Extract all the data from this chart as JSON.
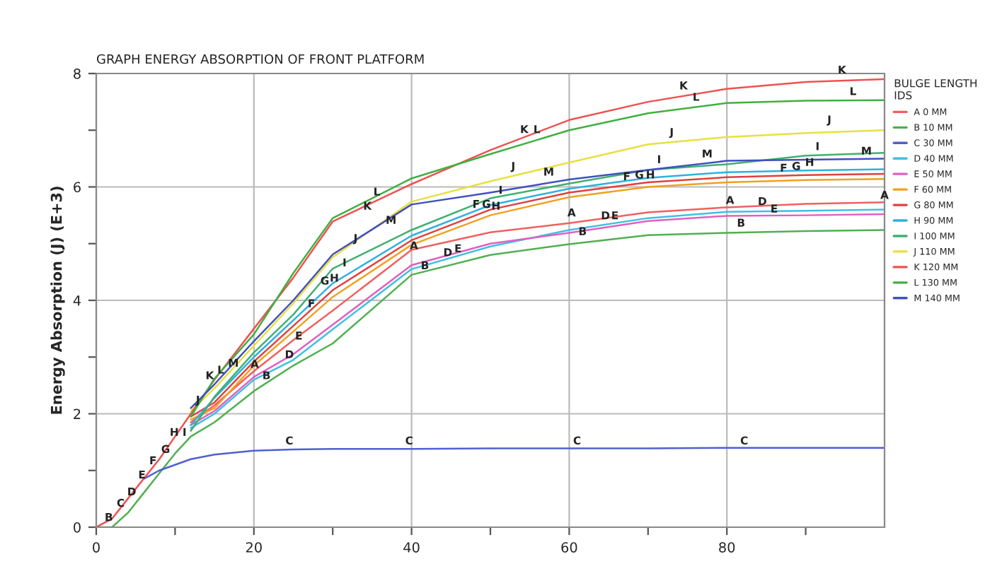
{
  "chart_data": {
    "type": "line",
    "title": "GRAPH ENERGY ABSORPTION OF FRONT PLATFORM",
    "ylabel": "Energy Absorption (J) (E+3)",
    "legend_title": "BULGE LENGTH\nIDS",
    "legend": "right",
    "grid": true,
    "marker": "none",
    "line_style": "solid",
    "x": [
      0,
      2,
      4,
      6,
      8,
      10,
      12,
      15,
      20,
      25,
      30,
      40,
      50,
      60,
      70,
      80,
      90,
      100
    ],
    "xlim": [
      0,
      100
    ],
    "ylim": [
      0,
      8
    ],
    "xticks": [
      0,
      {
        "value": 10,
        "label": null
      },
      20,
      {
        "value": 30,
        "label": null
      },
      40,
      {
        "value": 50,
        "label": null
      },
      60,
      {
        "value": 70,
        "label": null
      },
      80,
      {
        "value": 90,
        "label": null
      }
    ],
    "yticks": [
      0,
      {
        "value": 1,
        "label": null
      },
      2,
      {
        "value": 3,
        "label": null
      },
      4,
      {
        "value": 5,
        "label": null
      },
      6,
      {
        "value": 7,
        "label": null
      },
      8
    ],
    "series": [
      {
        "name": "A 0 MM",
        "color": "#f06060",
        "values": [
          null,
          null,
          null,
          null,
          null,
          null,
          1.85,
          2.15,
          2.75,
          3.3,
          3.82,
          4.89,
          5.2,
          5.36,
          5.55,
          5.64,
          5.7,
          5.73
        ]
      },
      {
        "name": "B 10 MM",
        "color": "#50b050",
        "values": [
          0,
          0,
          0.25,
          0.6,
          0.95,
          1.3,
          1.6,
          1.85,
          2.4,
          2.85,
          3.24,
          4.45,
          4.8,
          4.99,
          5.15,
          5.19,
          5.22,
          5.24
        ]
      },
      {
        "name": "C 30 MM",
        "color": "#5060d0",
        "values": [
          null,
          null,
          null,
          0.85,
          1.0,
          1.1,
          1.2,
          1.28,
          1.35,
          1.37,
          1.38,
          1.38,
          1.39,
          1.39,
          1.39,
          1.4,
          1.4,
          1.4
        ]
      },
      {
        "name": "D 40 MM",
        "color": "#40c0e0",
        "values": [
          null,
          null,
          null,
          null,
          null,
          null,
          1.75,
          2.0,
          2.6,
          2.95,
          3.49,
          4.55,
          4.95,
          5.24,
          5.45,
          5.56,
          5.58,
          5.6
        ]
      },
      {
        "name": "E 50 MM",
        "color": "#e060c0",
        "values": [
          null,
          null,
          null,
          null,
          null,
          null,
          1.8,
          2.05,
          2.65,
          3.05,
          3.57,
          4.62,
          5.0,
          5.19,
          5.4,
          5.49,
          5.5,
          5.52
        ]
      },
      {
        "name": "F 60 MM",
        "color": "#f0a020",
        "values": [
          null,
          null,
          null,
          null,
          null,
          null,
          1.9,
          2.1,
          2.85,
          3.45,
          4.06,
          4.98,
          5.5,
          5.82,
          6.0,
          6.08,
          6.12,
          6.14
        ]
      },
      {
        "name": "G 80 MM",
        "color": "#e04040",
        "values": [
          null,
          null,
          null,
          null,
          null,
          null,
          1.95,
          2.2,
          2.92,
          3.55,
          4.18,
          5.06,
          5.6,
          5.9,
          6.08,
          6.17,
          6.21,
          6.23
        ]
      },
      {
        "name": "H 90 MM",
        "color": "#30b0e0",
        "values": [
          null,
          null,
          null,
          null,
          null,
          null,
          1.8,
          2.28,
          3.0,
          3.65,
          4.3,
          5.14,
          5.68,
          5.97,
          6.16,
          6.26,
          6.29,
          6.31
        ]
      },
      {
        "name": "I 100 MM",
        "color": "#40b070",
        "values": [
          null,
          null,
          null,
          null,
          null,
          null,
          1.7,
          2.3,
          3.08,
          3.75,
          4.56,
          5.24,
          5.8,
          6.06,
          6.3,
          6.4,
          6.55,
          6.6
        ]
      },
      {
        "name": "J 110 MM",
        "color": "#e8e040",
        "values": [
          null,
          null,
          null,
          null,
          null,
          null,
          2.05,
          2.45,
          3.2,
          3.95,
          4.76,
          5.74,
          6.1,
          6.43,
          6.75,
          6.88,
          6.95,
          7.0
        ]
      },
      {
        "name": "K 120 MM",
        "color": "#f05050",
        "values": [
          0,
          0.15,
          0.5,
          0.85,
          1.2,
          1.6,
          2.0,
          2.6,
          3.5,
          4.4,
          5.39,
          6.05,
          6.65,
          7.18,
          7.5,
          7.73,
          7.85,
          7.9
        ]
      },
      {
        "name": "L 130 MM",
        "color": "#40b040",
        "values": [
          null,
          null,
          null,
          null,
          null,
          null,
          1.95,
          2.62,
          3.4,
          4.48,
          5.45,
          6.15,
          6.58,
          7.0,
          7.3,
          7.48,
          7.52,
          7.53
        ]
      },
      {
        "name": "M 140 MM",
        "color": "#4050c0",
        "values": [
          null,
          null,
          null,
          null,
          null,
          null,
          2.1,
          2.52,
          3.28,
          4.0,
          4.81,
          5.69,
          5.9,
          6.13,
          6.3,
          6.46,
          6.48,
          6.5
        ]
      }
    ],
    "annotations": [
      {
        "text": "B",
        "x": 1.6,
        "y": 0.07
      },
      {
        "text": "C",
        "x": 3.1,
        "y": 0.32
      },
      {
        "text": "D",
        "x": 4.5,
        "y": 0.52
      },
      {
        "text": "E",
        "x": 5.8,
        "y": 0.82
      },
      {
        "text": "F",
        "x": 7.2,
        "y": 1.07
      },
      {
        "text": "G",
        "x": 8.8,
        "y": 1.27
      },
      {
        "text": "H",
        "x": 9.9,
        "y": 1.57
      },
      {
        "text": "I",
        "x": 11.2,
        "y": 1.57
      },
      {
        "text": "J",
        "x": 12.9,
        "y": 2.14
      },
      {
        "text": "K",
        "x": 14.4,
        "y": 2.57
      },
      {
        "text": "L",
        "x": 15.8,
        "y": 2.67
      },
      {
        "text": "M",
        "x": 17.4,
        "y": 2.79
      },
      {
        "text": "A",
        "x": 20.1,
        "y": 2.77
      },
      {
        "text": "B",
        "x": 21.6,
        "y": 2.57
      },
      {
        "text": "D",
        "x": 24.5,
        "y": 2.94
      },
      {
        "text": "E",
        "x": 25.7,
        "y": 3.27
      },
      {
        "text": "F",
        "x": 27.3,
        "y": 3.84
      },
      {
        "text": "G",
        "x": 29.0,
        "y": 4.24
      },
      {
        "text": "H",
        "x": 30.2,
        "y": 4.29
      },
      {
        "text": "I",
        "x": 31.5,
        "y": 4.56
      },
      {
        "text": "J",
        "x": 32.9,
        "y": 4.99
      },
      {
        "text": "K",
        "x": 34.4,
        "y": 5.56
      },
      {
        "text": "L",
        "x": 35.6,
        "y": 5.81
      },
      {
        "text": "M",
        "x": 37.4,
        "y": 5.31
      },
      {
        "text": "A",
        "x": 40.3,
        "y": 4.86
      },
      {
        "text": "B",
        "x": 41.7,
        "y": 4.51
      },
      {
        "text": "D",
        "x": 44.6,
        "y": 4.74
      },
      {
        "text": "E",
        "x": 45.9,
        "y": 4.81
      },
      {
        "text": "C",
        "x": 24.5,
        "y": 1.42
      },
      {
        "text": "C",
        "x": 39.7,
        "y": 1.42
      },
      {
        "text": "C",
        "x": 61.0,
        "y": 1.42
      },
      {
        "text": "C",
        "x": 82.2,
        "y": 1.42
      },
      {
        "text": "K",
        "x": 54.3,
        "y": 6.91
      },
      {
        "text": "L",
        "x": 55.9,
        "y": 6.91
      },
      {
        "text": "J",
        "x": 52.9,
        "y": 6.26
      },
      {
        "text": "M",
        "x": 57.4,
        "y": 6.16
      },
      {
        "text": "I",
        "x": 51.3,
        "y": 5.84
      },
      {
        "text": "F",
        "x": 48.2,
        "y": 5.59
      },
      {
        "text": "G",
        "x": 49.5,
        "y": 5.59
      },
      {
        "text": "H",
        "x": 50.7,
        "y": 5.56
      },
      {
        "text": "A",
        "x": 60.3,
        "y": 5.44
      },
      {
        "text": "D",
        "x": 64.6,
        "y": 5.39
      },
      {
        "text": "E",
        "x": 65.8,
        "y": 5.39
      },
      {
        "text": "B",
        "x": 61.7,
        "y": 5.11
      },
      {
        "text": "K",
        "x": 74.5,
        "y": 7.68
      },
      {
        "text": "L",
        "x": 76.1,
        "y": 7.48
      },
      {
        "text": "J",
        "x": 73.0,
        "y": 6.86
      },
      {
        "text": "I",
        "x": 71.4,
        "y": 6.38
      },
      {
        "text": "M",
        "x": 77.5,
        "y": 6.48
      },
      {
        "text": "F",
        "x": 67.3,
        "y": 6.08
      },
      {
        "text": "G",
        "x": 68.9,
        "y": 6.11
      },
      {
        "text": "H",
        "x": 70.3,
        "y": 6.11
      },
      {
        "text": "A",
        "x": 80.4,
        "y": 5.66
      },
      {
        "text": "D",
        "x": 84.5,
        "y": 5.64
      },
      {
        "text": "E",
        "x": 86.0,
        "y": 5.51
      },
      {
        "text": "B",
        "x": 81.8,
        "y": 5.26
      },
      {
        "text": "K",
        "x": 94.6,
        "y": 7.96
      },
      {
        "text": "L",
        "x": 96.0,
        "y": 7.58
      },
      {
        "text": "J",
        "x": 93.0,
        "y": 7.08
      },
      {
        "text": "I",
        "x": 91.5,
        "y": 6.61
      },
      {
        "text": "M",
        "x": 97.7,
        "y": 6.53
      },
      {
        "text": "F",
        "x": 87.2,
        "y": 6.23
      },
      {
        "text": "G",
        "x": 88.8,
        "y": 6.26
      },
      {
        "text": "H",
        "x": 90.5,
        "y": 6.33
      },
      {
        "text": "A",
        "x": 100,
        "y": 5.75
      }
    ]
  }
}
